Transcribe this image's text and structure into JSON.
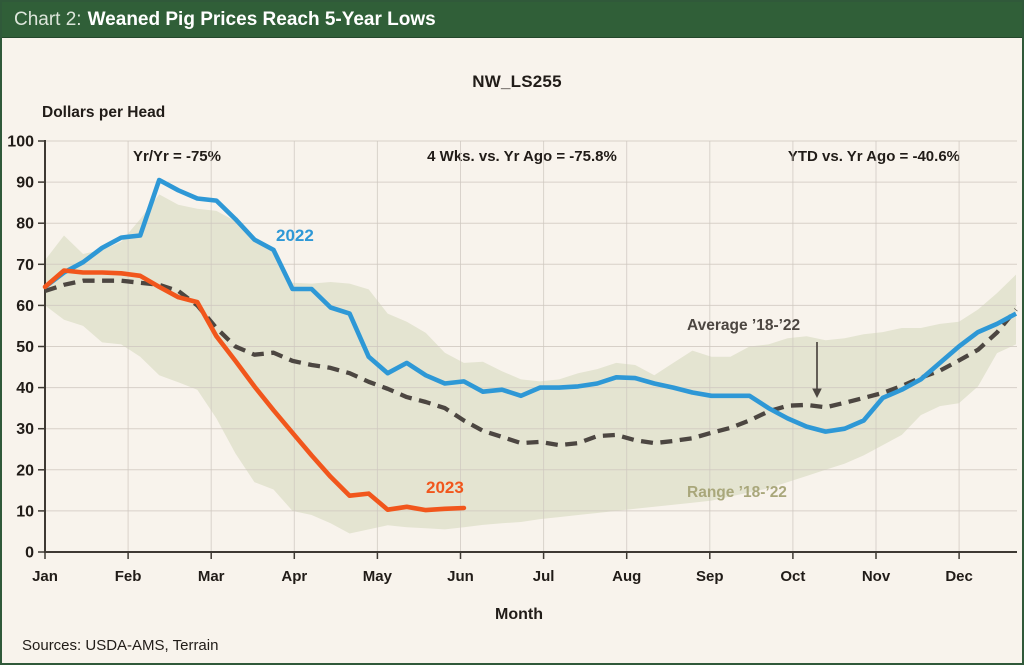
{
  "header": {
    "prefix": "Chart 2:",
    "title": "Weaned Pig Prices Reach 5-Year Lows"
  },
  "footer": {
    "sources": "Sources: USDA-AMS, Terrain"
  },
  "chart_data": {
    "type": "line",
    "title": "NW_LS255",
    "ylabel": "Dollars per Head",
    "xlabel": "Month",
    "ylim": [
      0,
      100
    ],
    "yticks": [
      0,
      10,
      20,
      30,
      40,
      50,
      60,
      70,
      80,
      90,
      100
    ],
    "months": [
      "Jan",
      "Feb",
      "Mar",
      "Apr",
      "May",
      "Jun",
      "Jul",
      "Aug",
      "Sep",
      "Oct",
      "Nov",
      "Dec"
    ],
    "x_unit": "week",
    "grid": true,
    "legend_position": "inline-labels",
    "annotations": [
      {
        "text": "Yr/Yr = -75%"
      },
      {
        "text": "4 Wks. vs. Yr Ago = -75.8%"
      },
      {
        "text": "YTD vs. Yr Ago = -40.6%"
      }
    ],
    "series": [
      {
        "name": "2022",
        "color": "#2E98D6",
        "style": "solid",
        "values": [
          64.5,
          68,
          70.5,
          74,
          76.5,
          77,
          90.5,
          88,
          86,
          85.5,
          81,
          76,
          73.5,
          64,
          64,
          59.5,
          58,
          47.5,
          43.5,
          46,
          43,
          41,
          41.5,
          39,
          39.5,
          38,
          40,
          40,
          40.3,
          41,
          42.5,
          42.3,
          41,
          40,
          38.8,
          38,
          38,
          38,
          35,
          32.5,
          30.5,
          29.3,
          30,
          32,
          37.5,
          39.5,
          42,
          46,
          50,
          53.5,
          55.5,
          58
        ]
      },
      {
        "name": "2023",
        "color": "#F1561C",
        "style": "solid",
        "values": [
          64.5,
          68.5,
          68,
          68,
          67.8,
          67.2,
          64.5,
          62,
          60.8,
          52.5,
          46.5,
          40.3,
          34.5,
          29,
          23.5,
          18.3,
          13.7,
          14.2,
          10.3,
          11,
          10.2,
          10.5,
          10.7
        ]
      },
      {
        "name": "Average ’18-’22",
        "color": "#4C4641",
        "style": "dashed",
        "values": [
          63.5,
          65,
          66,
          66,
          66,
          65.5,
          65,
          63.5,
          60,
          54.5,
          50,
          48,
          48.5,
          46.5,
          45.5,
          44.8,
          43.5,
          41.4,
          39.7,
          37.7,
          36.5,
          35,
          32,
          29.5,
          28,
          26.5,
          26.8,
          26,
          26.5,
          28.2,
          28.5,
          27.2,
          26.5,
          27,
          27.7,
          29,
          30.2,
          32,
          34.2,
          35.6,
          35.8,
          35.2,
          36.3,
          37.5,
          38.7,
          40.4,
          42.4,
          44.1,
          46.6,
          49.2,
          53.4,
          59
        ]
      }
    ],
    "band": {
      "name": "Range ’18-’22",
      "color": "#E4E4D1",
      "label_color": "#A9A77B",
      "upper": [
        71,
        77,
        72.5,
        73.5,
        75.5,
        81,
        87,
        84.5,
        83.5,
        83,
        80.5,
        76.5,
        73,
        65.5,
        65.3,
        65.7,
        65.3,
        63.9,
        58,
        56,
        53.3,
        48.5,
        46,
        46.3,
        44,
        42,
        41.5,
        42,
        43.5,
        44.5,
        46,
        45.5,
        43,
        46,
        49,
        47.5,
        47.5,
        50,
        50.5,
        52,
        52.5,
        51.5,
        52,
        53,
        53.5,
        54.5,
        54.5,
        55.5,
        56,
        59,
        63,
        67.5
      ],
      "lower": [
        60,
        56.5,
        55,
        51,
        50.5,
        47.5,
        43,
        41.3,
        39.5,
        32.5,
        24,
        17,
        15.2,
        10,
        9,
        7,
        4.5,
        5.5,
        6.5,
        6,
        5.8,
        5.5,
        6,
        6.6,
        7,
        7.3,
        8,
        8.5,
        9,
        9.5,
        10,
        10.5,
        11,
        11.5,
        12,
        12.5,
        13.5,
        14.5,
        15.5,
        17,
        18.5,
        20,
        21.5,
        23.5,
        26,
        28.5,
        33.3,
        35.5,
        36.2,
        40.3,
        48.4,
        50.5
      ]
    }
  }
}
